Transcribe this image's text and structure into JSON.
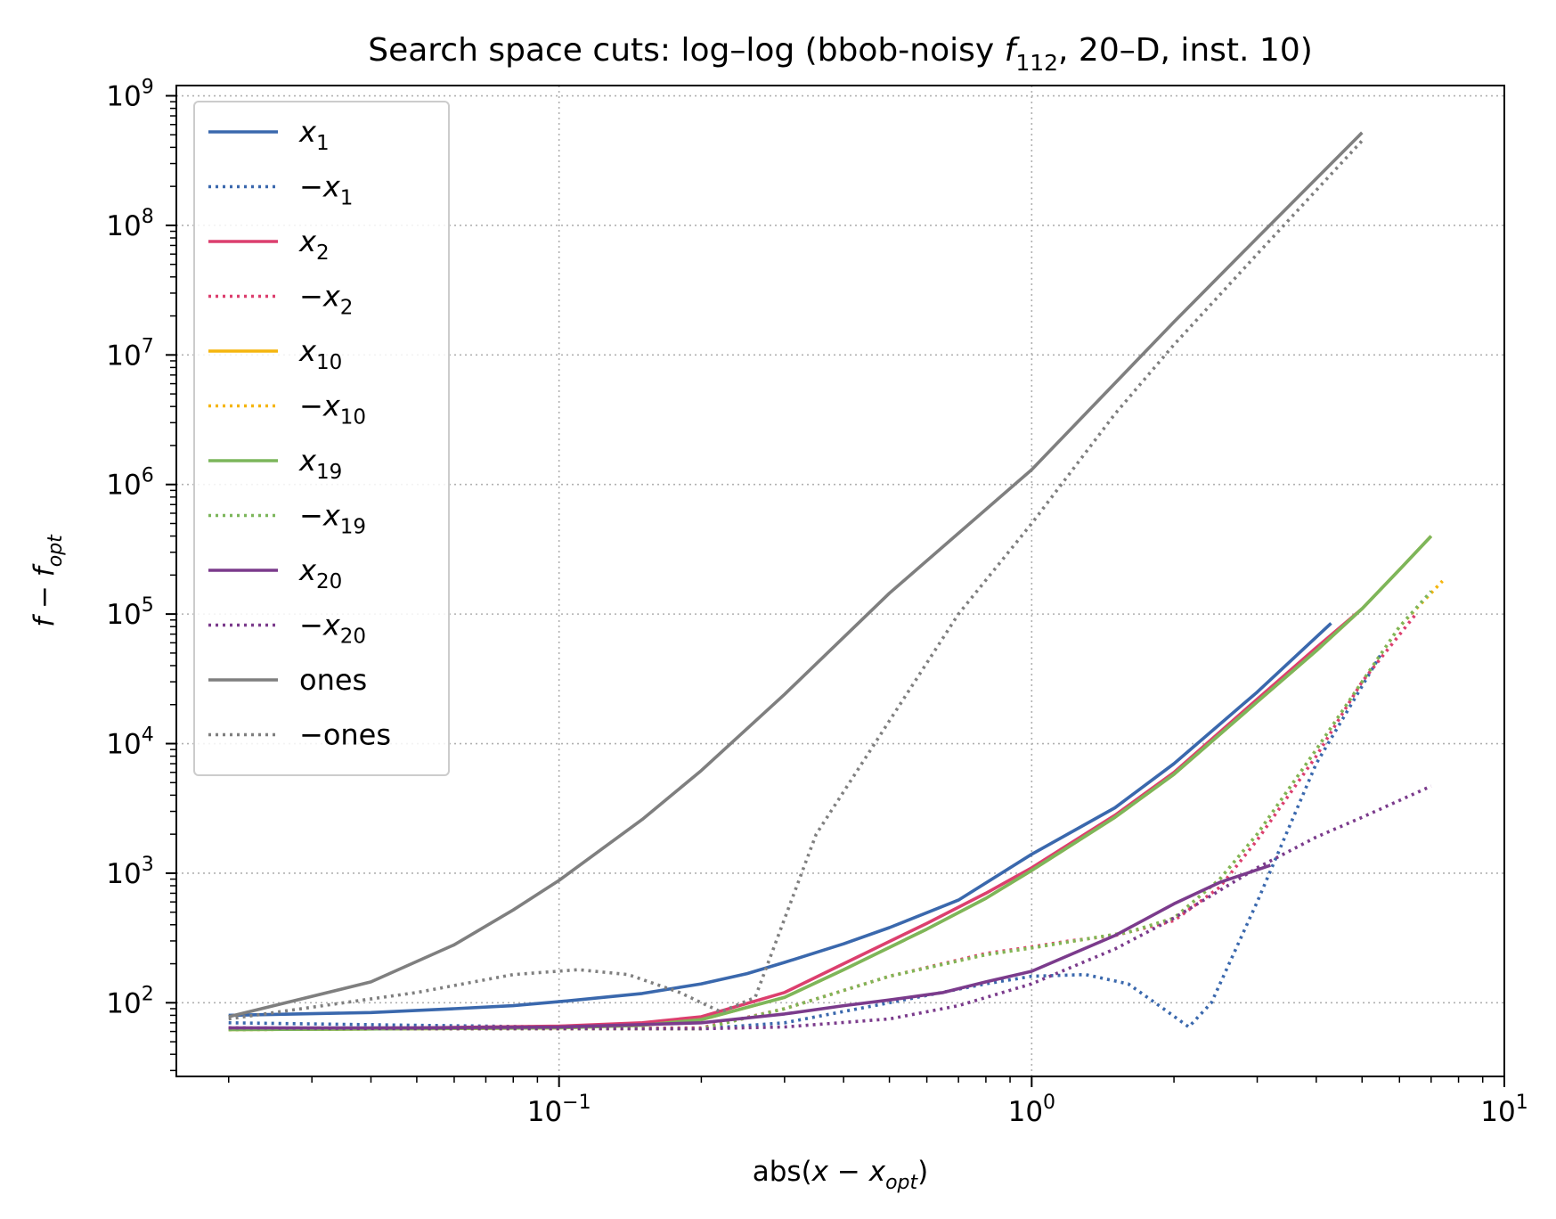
{
  "chart_data": {
    "type": "line",
    "title_parts": [
      {
        "t": "Search space cuts: log–log (bbob-noisy "
      },
      {
        "t": "f",
        "i": true
      },
      {
        "t": "112",
        "sub": true
      },
      {
        "t": ", 20–D, inst. 10)"
      }
    ],
    "xlabel_parts": [
      {
        "t": "abs("
      },
      {
        "t": "x",
        "i": true
      },
      {
        "t": " − "
      },
      {
        "t": "x",
        "i": true
      },
      {
        "t": "opt",
        "sub": true,
        "i": true
      },
      {
        "t": ")"
      }
    ],
    "ylabel_parts": [
      {
        "t": "f",
        "i": true
      },
      {
        "t": " − "
      },
      {
        "t": "f",
        "i": true
      },
      {
        "t": "opt",
        "sub": true,
        "i": true
      }
    ],
    "x_scale": "log",
    "y_scale": "log",
    "xlim": [
      0.0155,
      10
    ],
    "ylim": [
      27,
      1200000000.0
    ],
    "x_ticks": [
      {
        "value": 0.1,
        "base": "10",
        "exp": "−1"
      },
      {
        "value": 1,
        "base": "10",
        "exp": "0"
      },
      {
        "value": 10,
        "base": "10",
        "exp": "1"
      }
    ],
    "y_ticks": [
      {
        "value": 100,
        "base": "10",
        "exp": "2"
      },
      {
        "value": 1000,
        "base": "10",
        "exp": "3"
      },
      {
        "value": 10000,
        "base": "10",
        "exp": "4"
      },
      {
        "value": 100000,
        "base": "10",
        "exp": "5"
      },
      {
        "value": 1000000,
        "base": "10",
        "exp": "6"
      },
      {
        "value": 10000000,
        "base": "10",
        "exp": "7"
      },
      {
        "value": 100000000,
        "base": "10",
        "exp": "8"
      },
      {
        "value": 1000000000,
        "base": "10",
        "exp": "9"
      }
    ],
    "grid": true,
    "legend_position": "upper-left",
    "series": [
      {
        "name": "x",
        "sub": "1",
        "neg": false,
        "color": "#3a68ad",
        "dash": "solid",
        "x": [
          0.02,
          0.04,
          0.06,
          0.08,
          0.1,
          0.15,
          0.2,
          0.25,
          0.3,
          0.4,
          0.5,
          0.7,
          1.0,
          1.5,
          2.0,
          3.0,
          4.3
        ],
        "y": [
          80,
          84,
          90,
          95,
          102,
          118,
          140,
          168,
          205,
          285,
          380,
          620,
          1400,
          3200,
          7000,
          25000,
          85000
        ]
      },
      {
        "name": "x",
        "sub": "1",
        "neg": true,
        "color": "#3a68ad",
        "dash": "dot",
        "x": [
          0.02,
          0.05,
          0.1,
          0.15,
          0.2,
          0.3,
          0.5,
          0.8,
          1.0,
          1.3,
          1.6,
          1.9,
          2.15,
          2.4,
          3.0,
          4.0,
          5.5
        ],
        "y": [
          70,
          67,
          65,
          63,
          63,
          70,
          100,
          140,
          160,
          165,
          140,
          90,
          65,
          100,
          600,
          7000,
          50000
        ]
      },
      {
        "name": "x",
        "sub": "2",
        "neg": false,
        "color": "#dc3f6e",
        "dash": "solid",
        "x": [
          0.02,
          0.05,
          0.1,
          0.15,
          0.2,
          0.3,
          0.4,
          0.6,
          0.8,
          1.0,
          1.5,
          2.0,
          3.0,
          4.0,
          5.0
        ],
        "y": [
          63,
          64,
          66,
          70,
          78,
          120,
          200,
          410,
          700,
          1100,
          2800,
          6000,
          22000,
          55000,
          110000
        ]
      },
      {
        "name": "x",
        "sub": "2",
        "neg": true,
        "color": "#dc3f6e",
        "dash": "dot",
        "x": [
          0.02,
          0.05,
          0.1,
          0.2,
          0.3,
          0.5,
          0.8,
          1.0,
          1.2,
          1.5,
          2.0,
          2.5,
          3.0,
          4.0,
          5.0,
          6.5
        ],
        "y": [
          64,
          63,
          63,
          64,
          90,
          160,
          240,
          270,
          300,
          330,
          430,
          780,
          1800,
          8000,
          30000,
          100000
        ]
      },
      {
        "name": "x",
        "sub": "10",
        "neg": false,
        "color": "#f5b50e",
        "dash": "solid",
        "x": [
          0.02,
          0.05,
          0.1,
          0.15,
          0.2,
          0.3,
          0.4,
          0.6,
          0.8,
          1.0,
          1.5,
          2.0,
          3.0,
          4.0,
          5.0,
          6.0,
          7.0
        ],
        "y": [
          62,
          63,
          64,
          67,
          74,
          110,
          180,
          370,
          640,
          1050,
          2700,
          5800,
          21000,
          52000,
          110000,
          220000,
          400000
        ]
      },
      {
        "name": "x",
        "sub": "10",
        "neg": true,
        "color": "#f5b50e",
        "dash": "dot",
        "x": [
          0.02,
          0.05,
          0.1,
          0.2,
          0.3,
          0.5,
          0.8,
          1.0,
          1.3,
          1.6,
          2.0,
          2.5,
          3.0,
          4.0,
          5.0,
          6.0,
          7.4
        ],
        "y": [
          62,
          63,
          63,
          63,
          90,
          160,
          235,
          265,
          310,
          350,
          450,
          900,
          2000,
          9000,
          30000,
          80000,
          180000
        ]
      },
      {
        "name": "x",
        "sub": "19",
        "neg": false,
        "color": "#7cb65b",
        "dash": "solid",
        "x": [
          0.02,
          0.05,
          0.1,
          0.15,
          0.2,
          0.3,
          0.4,
          0.6,
          0.8,
          1.0,
          1.5,
          2.0,
          3.0,
          4.0,
          5.0,
          6.0,
          7.0
        ],
        "y": [
          62,
          63,
          64,
          67,
          74,
          110,
          180,
          370,
          640,
          1050,
          2700,
          5800,
          21000,
          52000,
          110000,
          220000,
          400000
        ]
      },
      {
        "name": "x",
        "sub": "19",
        "neg": true,
        "color": "#7cb65b",
        "dash": "dot",
        "x": [
          0.02,
          0.05,
          0.1,
          0.2,
          0.3,
          0.5,
          0.8,
          1.0,
          1.3,
          1.6,
          2.0,
          2.5,
          3.0,
          4.0,
          5.0,
          6.0,
          7.0
        ],
        "y": [
          62,
          63,
          63,
          63,
          90,
          160,
          235,
          265,
          310,
          350,
          450,
          900,
          2000,
          9000,
          30000,
          80000,
          150000
        ]
      },
      {
        "name": "x",
        "sub": "20",
        "neg": false,
        "color": "#7b3b8c",
        "dash": "solid",
        "x": [
          0.02,
          0.05,
          0.1,
          0.2,
          0.3,
          0.4,
          0.5,
          0.65,
          0.8,
          1.0,
          1.5,
          2.0,
          2.5,
          3.2
        ],
        "y": [
          64,
          64,
          65,
          70,
          82,
          95,
          105,
          120,
          145,
          175,
          330,
          580,
          850,
          1150
        ]
      },
      {
        "name": "x",
        "sub": "20",
        "neg": true,
        "color": "#7b3b8c",
        "dash": "dot",
        "x": [
          0.02,
          0.05,
          0.1,
          0.2,
          0.3,
          0.5,
          0.7,
          1.0,
          1.5,
          2.0,
          3.0,
          4.0,
          5.0,
          7.0
        ],
        "y": [
          64,
          63,
          63,
          63,
          65,
          75,
          95,
          140,
          260,
          450,
          1100,
          1900,
          2700,
          4700
        ]
      },
      {
        "name": "ones",
        "sub": "",
        "neg": false,
        "color": "#7f7f7f",
        "dash": "solid",
        "x": [
          0.02,
          0.04,
          0.06,
          0.08,
          0.1,
          0.15,
          0.2,
          0.3,
          0.5,
          1.0,
          2.0,
          3.0,
          5.0
        ],
        "y": [
          78,
          145,
          280,
          520,
          880,
          2600,
          6200,
          24000,
          145000,
          1300000,
          18000000,
          80000000,
          520000000
        ]
      },
      {
        "name": "ones",
        "sub": "",
        "neg": true,
        "color": "#7f7f7f",
        "dash": "dot",
        "x": [
          0.02,
          0.05,
          0.08,
          0.11,
          0.14,
          0.18,
          0.22,
          0.26,
          0.35,
          0.5,
          0.7,
          1.0,
          1.5,
          2.0,
          3.0,
          5.0
        ],
        "y": [
          75,
          120,
          165,
          180,
          165,
          120,
          85,
          110,
          2000,
          15000,
          100000,
          500000,
          3500000,
          12000000,
          60000000,
          450000000
        ]
      }
    ]
  }
}
